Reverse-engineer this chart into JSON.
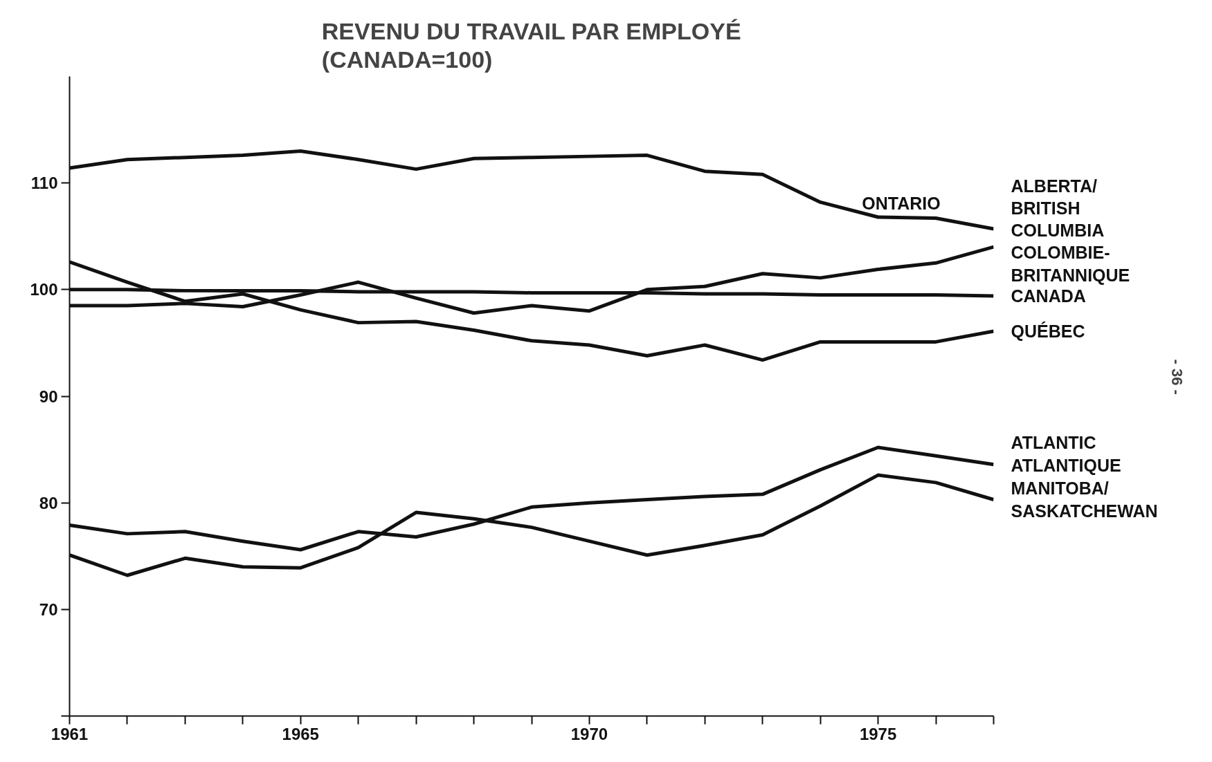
{
  "chart_data": {
    "type": "line",
    "title": "REVENU DU TRAVAIL PAR EMPLOYÉ\n(CANADA=100)",
    "x": [
      1961,
      1962,
      1963,
      1964,
      1965,
      1966,
      1967,
      1968,
      1969,
      1970,
      1971,
      1972,
      1973,
      1974,
      1975,
      1976,
      1977
    ],
    "xlim": [
      1961,
      1977
    ],
    "xticks": [
      1961,
      {
        "value": 1962,
        "label": null
      },
      {
        "value": 1963,
        "label": null
      },
      {
        "value": 1964,
        "label": null
      },
      1965,
      {
        "value": 1966,
        "label": null
      },
      {
        "value": 1967,
        "label": null
      },
      {
        "value": 1968,
        "label": null
      },
      {
        "value": 1969,
        "label": null
      },
      1970,
      {
        "value": 1971,
        "label": null
      },
      {
        "value": 1972,
        "label": null
      },
      {
        "value": 1973,
        "label": null
      },
      {
        "value": 1974,
        "label": null
      },
      1975,
      {
        "value": 1976,
        "label": null
      },
      {
        "value": 1977,
        "label": null
      }
    ],
    "ylim": [
      60,
      120
    ],
    "yticks": [
      {
        "value": 60,
        "label": null
      },
      70,
      80,
      90,
      100,
      110
    ],
    "grid": false,
    "marker": "none",
    "line_style": "solid",
    "annotations": [
      "- 36 -"
    ],
    "series": [
      {
        "name": "ONTARIO",
        "color": "#111111",
        "values": [
          111.4,
          112.2,
          112.4,
          112.6,
          113.0,
          112.2,
          111.3,
          112.3,
          112.4,
          112.5,
          112.6,
          111.1,
          110.8,
          108.2,
          106.8,
          106.7,
          105.7
        ]
      },
      {
        "name": "ALBERTA/\nBRITISH\nCOLUMBIA\nCOLOMBIE-\nBRITANNIQUE",
        "color": "#111111",
        "values": [
          98.5,
          98.5,
          98.7,
          98.4,
          99.5,
          100.7,
          99.2,
          97.8,
          98.5,
          98.0,
          100.0,
          100.3,
          101.5,
          101.1,
          101.9,
          102.5,
          104.0
        ]
      },
      {
        "name": "CANADA",
        "color": "#111111",
        "values": [
          100.0,
          100.0,
          99.9,
          99.9,
          99.9,
          99.8,
          99.8,
          99.8,
          99.7,
          99.7,
          99.7,
          99.6,
          99.6,
          99.5,
          99.5,
          99.5,
          99.4
        ]
      },
      {
        "name": "QUÉBEC",
        "color": "#111111",
        "values": [
          102.6,
          100.7,
          98.9,
          99.6,
          98.1,
          96.9,
          97.0,
          96.2,
          95.2,
          94.8,
          93.8,
          94.8,
          93.4,
          95.1,
          95.1,
          95.1,
          96.1
        ]
      },
      {
        "name": "ATLANTIC\nATLANTIQUE",
        "color": "#111111",
        "values": [
          77.9,
          77.1,
          77.3,
          76.4,
          75.6,
          77.3,
          76.8,
          78.0,
          79.6,
          80.0,
          80.3,
          80.6,
          80.8,
          83.1,
          85.2,
          84.4,
          83.6
        ]
      },
      {
        "name": "MANITOBA/\nSASKATCHEWAN",
        "color": "#111111",
        "values": [
          75.1,
          73.2,
          74.8,
          74.0,
          73.9,
          75.8,
          79.1,
          78.5,
          77.7,
          76.4,
          75.1,
          76.0,
          77.0,
          79.7,
          82.6,
          81.9,
          80.3
        ]
      }
    ]
  }
}
